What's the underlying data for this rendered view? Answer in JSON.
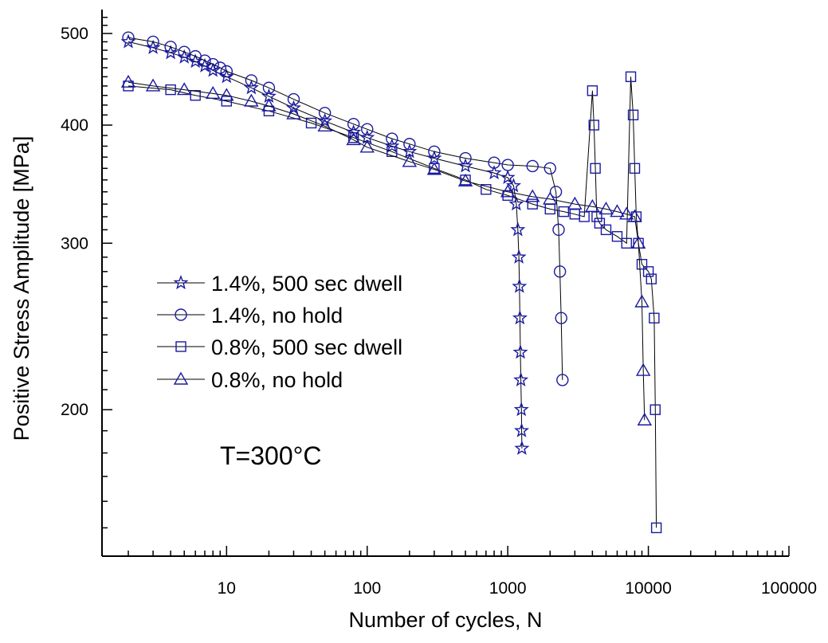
{
  "chart_data": {
    "type": "scatter",
    "xlabel": "Number of cycles, N",
    "ylabel": "Positive Stress Amplitude [MPa]",
    "xscale": "log",
    "yscale": "log",
    "xlim": [
      1.3,
      100000
    ],
    "ylim": [
      140,
      530
    ],
    "x_ticks": [
      10,
      100,
      1000,
      10000,
      100000
    ],
    "x_tick_labels": [
      "10",
      "100",
      "1000",
      "10000",
      "100000"
    ],
    "y_ticks": [
      200,
      300,
      400,
      500
    ],
    "y_tick_labels": [
      "200",
      "300",
      "400",
      "500"
    ],
    "annotation": "T=300°C",
    "legend_placement": "center-left",
    "marker_color": "#1a1aa0",
    "series": [
      {
        "name": "1.4%, 500 sec dwell",
        "marker": "star",
        "x": [
          2,
          3,
          4,
          5,
          6,
          7,
          8,
          10,
          15,
          20,
          30,
          50,
          80,
          100,
          150,
          200,
          300,
          500,
          800,
          1000,
          1100,
          1150,
          1180,
          1200,
          1210,
          1220,
          1230,
          1240,
          1250,
          1255,
          1260
        ],
        "y": [
          490,
          483,
          477,
          472,
          467,
          462,
          457,
          450,
          438,
          429,
          417,
          404,
          393,
          388,
          380,
          375,
          369,
          362,
          356,
          352,
          345,
          330,
          310,
          290,
          270,
          250,
          230,
          215,
          200,
          190,
          182
        ]
      },
      {
        "name": "1.4%, no hold",
        "marker": "circle",
        "x": [
          2,
          3,
          4,
          5,
          6,
          7,
          8,
          9,
          10,
          15,
          20,
          30,
          50,
          80,
          100,
          150,
          200,
          300,
          500,
          800,
          1000,
          1500,
          2000,
          2200,
          2300,
          2350,
          2400,
          2450
        ],
        "y": [
          495,
          490,
          484,
          478,
          473,
          468,
          464,
          460,
          456,
          446,
          438,
          426,
          412,
          401,
          396,
          387,
          382,
          375,
          369,
          365,
          363,
          362,
          360,
          340,
          310,
          280,
          250,
          215
        ]
      },
      {
        "name": "0.8%, 500 sec dwell",
        "marker": "square",
        "x": [
          2,
          4,
          6,
          10,
          20,
          40,
          80,
          150,
          300,
          500,
          700,
          1000,
          1500,
          2000,
          2500,
          3000,
          3500,
          4000,
          4100,
          4200,
          4300,
          4500,
          5000,
          6000,
          7000,
          7500,
          7800,
          8000,
          8200,
          8500,
          9000,
          10000,
          10500,
          11000,
          11200,
          11400
        ],
        "y": [
          440,
          436,
          430,
          424,
          414,
          402,
          388,
          375,
          360,
          350,
          342,
          337,
          330,
          326,
          324,
          322,
          320,
          435,
          400,
          360,
          320,
          315,
          310,
          305,
          300,
          450,
          410,
          360,
          320,
          300,
          285,
          280,
          275,
          250,
          200,
          150
        ]
      },
      {
        "name": "0.8%, no hold",
        "marker": "triangle",
        "x": [
          2,
          3,
          5,
          8,
          10,
          15,
          20,
          30,
          50,
          80,
          100,
          200,
          300,
          500,
          1000,
          1500,
          2000,
          3000,
          4000,
          5000,
          6000,
          7000,
          8000,
          8500,
          9000,
          9200,
          9400
        ],
        "y": [
          444,
          440,
          436,
          432,
          430,
          424,
          419,
          411,
          399,
          386,
          379,
          366,
          359,
          349,
          340,
          336,
          334,
          330,
          328,
          326,
          324,
          322,
          320,
          300,
          260,
          220,
          195
        ]
      }
    ]
  }
}
